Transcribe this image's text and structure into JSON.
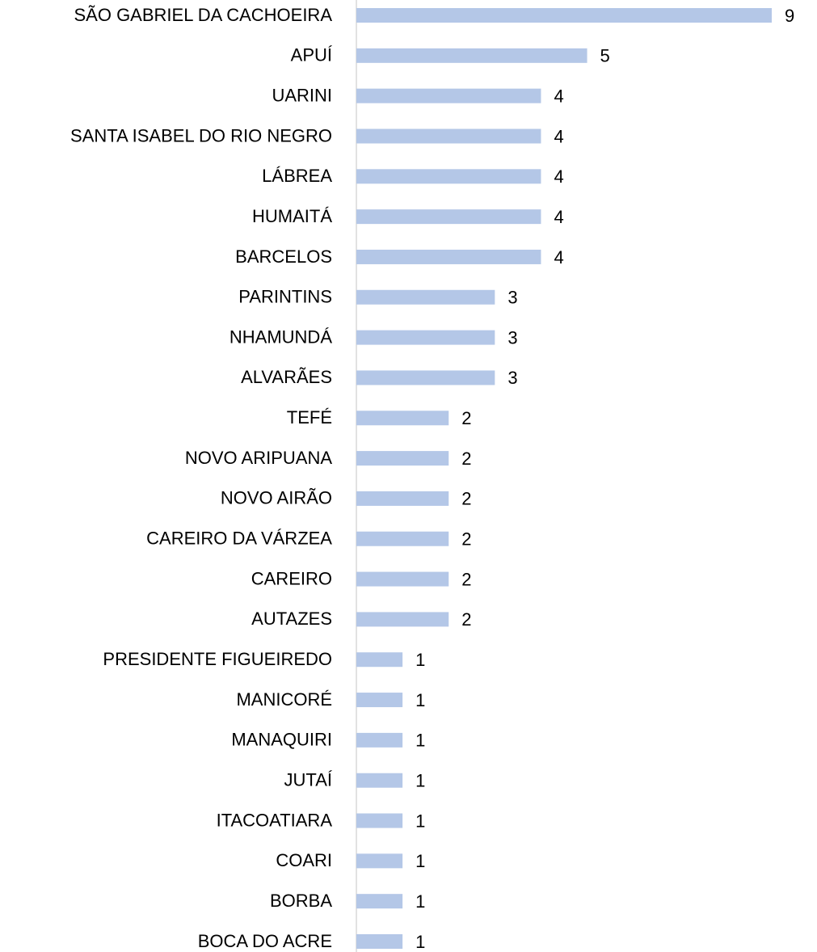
{
  "chart_data": {
    "type": "barh",
    "categories": [
      "SÃO GABRIEL DA CACHOEIRA",
      "APUÍ",
      "UARINI",
      "SANTA ISABEL DO RIO NEGRO",
      "LÁBREA",
      "HUMAITÁ",
      "BARCELOS",
      "PARINTINS",
      "NHAMUNDÁ",
      "ALVARÃES",
      "TEFÉ",
      "NOVO ARIPUANA",
      "NOVO AIRÃO",
      "CAREIRO DA VÁRZEA",
      "CAREIRO",
      "AUTAZES",
      "PRESIDENTE FIGUEIREDO",
      "MANICORÉ",
      "MANAQUIRI",
      "JUTAÍ",
      "ITACOATIARA",
      "COARI",
      "BORBA",
      "BOCA DO ACRE"
    ],
    "values": [
      9,
      5,
      4,
      4,
      4,
      4,
      4,
      3,
      3,
      3,
      2,
      2,
      2,
      2,
      2,
      2,
      1,
      1,
      1,
      1,
      1,
      1,
      1,
      1
    ],
    "color": "#b4c7e7"
  }
}
